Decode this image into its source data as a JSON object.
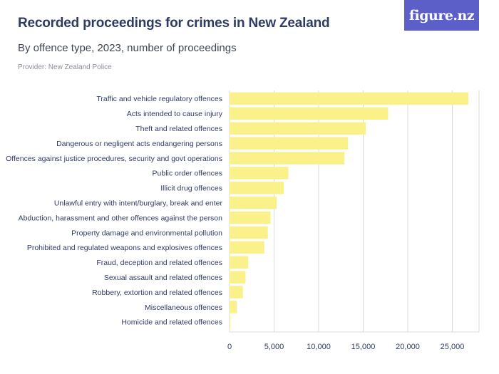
{
  "header": {
    "title": "Recorded proceedings for crimes in New Zealand",
    "subtitle": "By offence type, 2023, number of proceedings",
    "provider": "Provider: New Zealand Police",
    "logo_text": "figure.nz"
  },
  "colors": {
    "bar": "#fbf18a",
    "grid": "#d9dce3",
    "text": "#2f3b63",
    "logo_bg": "#5b5fc7"
  },
  "chart_data": {
    "type": "bar",
    "orientation": "horizontal",
    "title": "Recorded proceedings for crimes in New Zealand",
    "subtitle": "By offence type, 2023, number of proceedings",
    "categories": [
      "Traffic and vehicle regulatory offences",
      "Acts intended to cause injury",
      "Theft and related offences",
      "Dangerous or negligent acts endangering persons",
      "Offences against justice procedures, security and govt operations",
      "Public order offences",
      "Illicit drug offences",
      "Unlawful entry with intent/burglary, break and enter",
      "Abduction, harassment and other offences against the person",
      "Property damage and environmental pollution",
      "Prohibited and regulated weapons and explosives offences",
      "Fraud, deception and related offences",
      "Sexual assault and related offences",
      "Robbery, extortion and related offences",
      "Miscellaneous offences",
      "Homicide and related offences"
    ],
    "values": [
      26800,
      17800,
      15300,
      13300,
      12900,
      6600,
      6100,
      5300,
      4600,
      4300,
      3900,
      2100,
      1800,
      1500,
      800,
      100
    ],
    "xlim": [
      0,
      28000
    ],
    "xticks": [
      0,
      5000,
      10000,
      15000,
      20000,
      25000
    ],
    "xtick_labels": [
      "0",
      "5,000",
      "10,000",
      "15,000",
      "20,000",
      "25,000"
    ],
    "grid": true,
    "legend": "none"
  }
}
